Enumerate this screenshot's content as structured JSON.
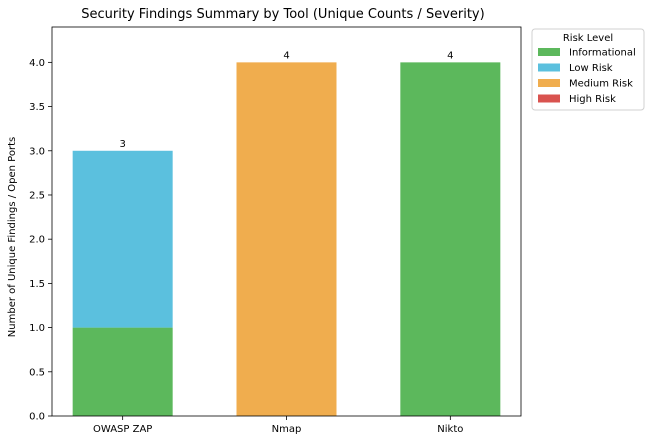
{
  "chart_data": {
    "type": "bar",
    "stacked": true,
    "title": "Security Findings Summary by Tool (Unique Counts / Severity)",
    "xlabel": "",
    "ylabel": "Number of Unique Findings / Open Ports",
    "categories": [
      "OWASP ZAP",
      "Nmap",
      "Nikto"
    ],
    "series": [
      {
        "name": "Informational",
        "color": "#5cb85c",
        "values": [
          1,
          0,
          4
        ]
      },
      {
        "name": "Low Risk",
        "color": "#5bc0de",
        "values": [
          2,
          0,
          0
        ]
      },
      {
        "name": "Medium Risk",
        "color": "#f0ad4e",
        "values": [
          0,
          4,
          0
        ]
      },
      {
        "name": "High Risk",
        "color": "#d9534f",
        "values": [
          0,
          0,
          0
        ]
      }
    ],
    "totals": [
      "3",
      "4",
      "4"
    ],
    "ylim": [
      0,
      4.4
    ],
    "yticks": [
      0.0,
      0.5,
      1.0,
      1.5,
      2.0,
      2.5,
      3.0,
      3.5,
      4.0
    ],
    "grid": false,
    "legend": {
      "title": "Risk Level",
      "placement": "outside-top-right"
    }
  }
}
